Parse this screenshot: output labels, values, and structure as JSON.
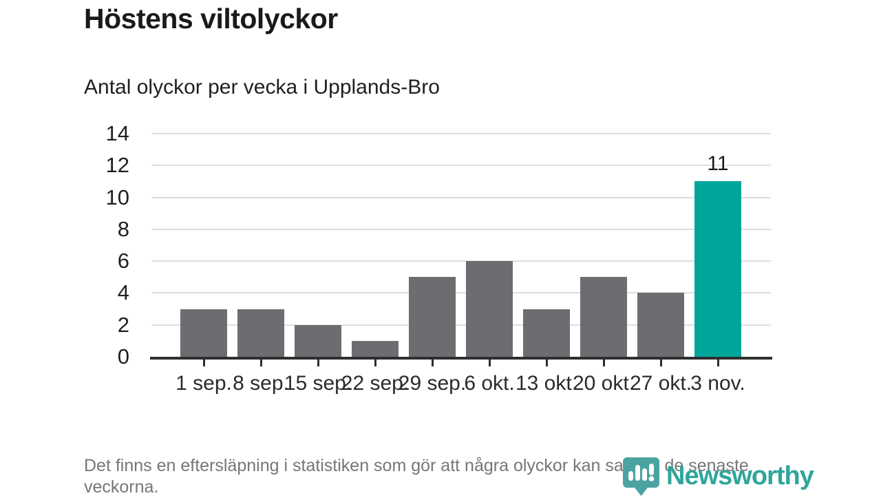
{
  "header": {
    "title": "Höstens viltolyckor",
    "subtitle": "Antal olyckor per vecka i Upplands-Bro"
  },
  "chart_data": {
    "type": "bar",
    "title": "Höstens viltolyckor",
    "subtitle": "Antal olyckor per vecka i Upplands-Bro",
    "xlabel": "",
    "ylabel": "",
    "categories": [
      "1 sep.",
      "8 sep.",
      "15 sep.",
      "22 sep.",
      "29 sep.",
      "6 okt.",
      "13 okt.",
      "20 okt.",
      "27 okt.",
      "3 nov."
    ],
    "values": [
      3,
      3,
      2,
      1,
      5,
      6,
      3,
      5,
      4,
      11
    ],
    "highlight_index": 9,
    "annotation": "11",
    "ylim": [
      0,
      14
    ],
    "yticks": [
      0,
      2,
      4,
      6,
      8,
      10,
      12,
      14
    ],
    "grid": "horizontal",
    "legend": "none",
    "bar_color": "#6c6c71",
    "highlight_color": "#00a59b",
    "gridline_color": "#dddddd",
    "axis_color": "#2e2e2e"
  },
  "footer": {
    "note": "Det finns en eftersläpning i statistiken som gör att några olyckor kan saknas de senaste veckorna.",
    "brand": "Newsworthy"
  }
}
